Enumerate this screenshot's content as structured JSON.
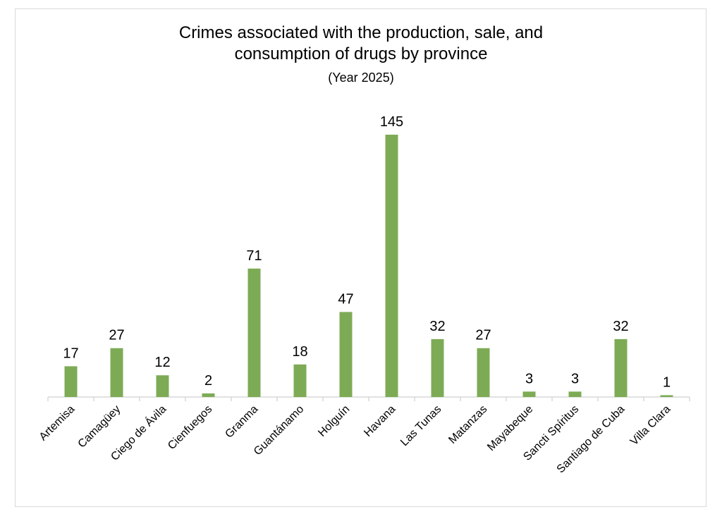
{
  "chart_data": {
    "type": "bar",
    "title_line1": "Crimes associated with the production, sale, and",
    "title_line2": "consumption of drugs by province",
    "subtitle": "(Year 2025)",
    "xlabel": "",
    "ylabel": "",
    "ylim": [
      0,
      145
    ],
    "grid": false,
    "legend": "none",
    "bar_color": "#7dab55",
    "categories": [
      "Artemisa",
      "Camagüey",
      "Ciego de Ávila",
      "Cienfuegos",
      "Granma",
      "Guantánamo",
      "Holguín",
      "Havana",
      "Las Tunas",
      "Matanzas",
      "Mayabeque",
      "Sancti Spíritus",
      "Santiago de Cuba",
      "Villa Clara"
    ],
    "values": [
      17,
      27,
      12,
      2,
      71,
      18,
      47,
      145,
      32,
      27,
      3,
      3,
      32,
      1
    ]
  }
}
